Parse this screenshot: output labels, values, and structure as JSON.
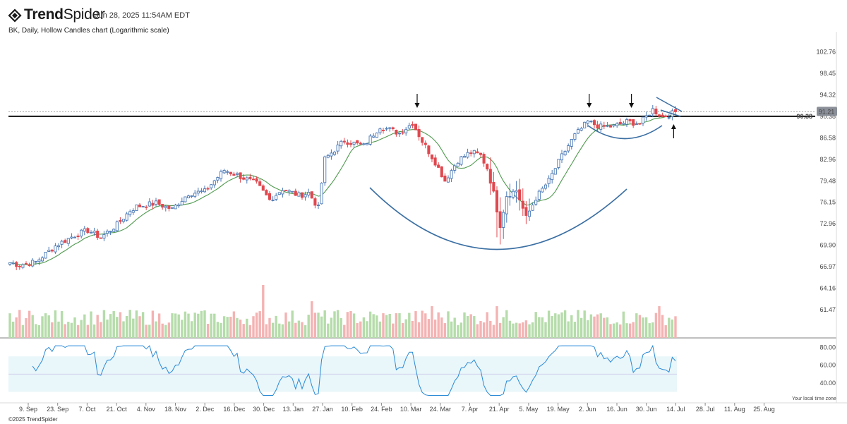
{
  "app": {
    "logo_bold": "Trend",
    "logo_light": "Spider",
    "timestamp": "Jun 28, 2025 11:54AM EDT",
    "subtitle": "BK, Daily, Hollow Candles chart (Logarithmic scale)",
    "copyright": "©2025 TrendSpider",
    "timezone_note": "Your local time zone"
  },
  "colors": {
    "up": "#4a78b5",
    "down": "#e0484f",
    "sma": "#4f9a4f",
    "vol_up": "#b5dcaa",
    "vol_down": "#f4b3b3",
    "rsi_line": "#2a8ad6",
    "rsi_band": "#e9f6fa",
    "pattern": "#3b6fa3",
    "level": "#111111",
    "price_badge": "#8a8f98"
  },
  "chart_data": {
    "type": "candlestick",
    "scale": "log",
    "y_ticks": [
      "102.76",
      "98.45",
      "94.32",
      "90.38",
      "86.58",
      "82.96",
      "79.48",
      "76.15",
      "72.96",
      "69.90",
      "66.97",
      "64.16",
      "61.47"
    ],
    "y_range": [
      59.5,
      105.5
    ],
    "x_ticks": [
      "9. Sep",
      "23. Sep",
      "7. Oct",
      "21. Oct",
      "4. Nov",
      "18. Nov",
      "2. Dec",
      "16. Dec",
      "30. Dec",
      "13. Jan",
      "27. Jan",
      "10. Feb",
      "24. Feb",
      "10. Mar",
      "24. Mar",
      "7. Apr",
      "21. Apr",
      "5. May",
      "19. May",
      "2. Jun",
      "16. Jun",
      "30. Jun",
      "14. Jul",
      "28. Jul",
      "11. Aug",
      "25. Aug"
    ],
    "horizontal_level": 90.38,
    "level_label": "90.38",
    "last_price": 91.21,
    "last_price_label": "91.21",
    "close_anchors": [
      [
        0,
        67.5
      ],
      [
        3,
        67.2
      ],
      [
        8,
        67.6
      ],
      [
        14,
        69.8
      ],
      [
        20,
        71.3
      ],
      [
        24,
        72.0
      ],
      [
        28,
        71.0
      ],
      [
        33,
        72.8
      ],
      [
        37,
        74.9
      ],
      [
        39,
        75.5
      ],
      [
        45,
        76.0
      ],
      [
        50,
        75.1
      ],
      [
        55,
        77.5
      ],
      [
        60,
        77.8
      ],
      [
        66,
        81.2
      ],
      [
        70,
        80.4
      ],
      [
        76,
        79.0
      ],
      [
        80,
        76.5
      ],
      [
        84,
        78.2
      ],
      [
        89,
        77.2
      ],
      [
        92,
        77.6
      ],
      [
        95,
        75.3
      ],
      [
        97,
        83.0
      ],
      [
        103,
        86.1
      ],
      [
        109,
        85.2
      ],
      [
        114,
        88.6
      ],
      [
        120,
        87.4
      ],
      [
        124,
        89.2
      ],
      [
        127,
        86.0
      ],
      [
        131,
        82.5
      ],
      [
        134,
        79.5
      ],
      [
        138,
        82.8
      ],
      [
        142,
        84.2
      ],
      [
        145,
        83.6
      ],
      [
        147,
        81.5
      ],
      [
        149,
        77.5
      ],
      [
        151,
        72.6
      ],
      [
        153,
        77.2
      ],
      [
        156,
        78.0
      ],
      [
        159,
        73.8
      ],
      [
        162,
        76.8
      ],
      [
        166,
        79.5
      ],
      [
        170,
        83.5
      ],
      [
        174,
        87.0
      ],
      [
        178,
        89.4
      ],
      [
        182,
        88.5
      ],
      [
        186,
        88.6
      ],
      [
        190,
        89.4
      ],
      [
        194,
        89.1
      ],
      [
        198,
        91.6
      ],
      [
        201,
        90.3
      ],
      [
        204,
        90.9
      ],
      [
        205,
        91.2
      ]
    ],
    "rsi": {
      "ticks": [
        "80.00",
        "60.00",
        "40.00"
      ],
      "range": [
        20,
        90
      ],
      "band": [
        30,
        70
      ],
      "mid": 50
    },
    "annotations": {
      "arrows_down_at": [
        125,
        178,
        191
      ],
      "arrow_up_at": 204
    }
  }
}
